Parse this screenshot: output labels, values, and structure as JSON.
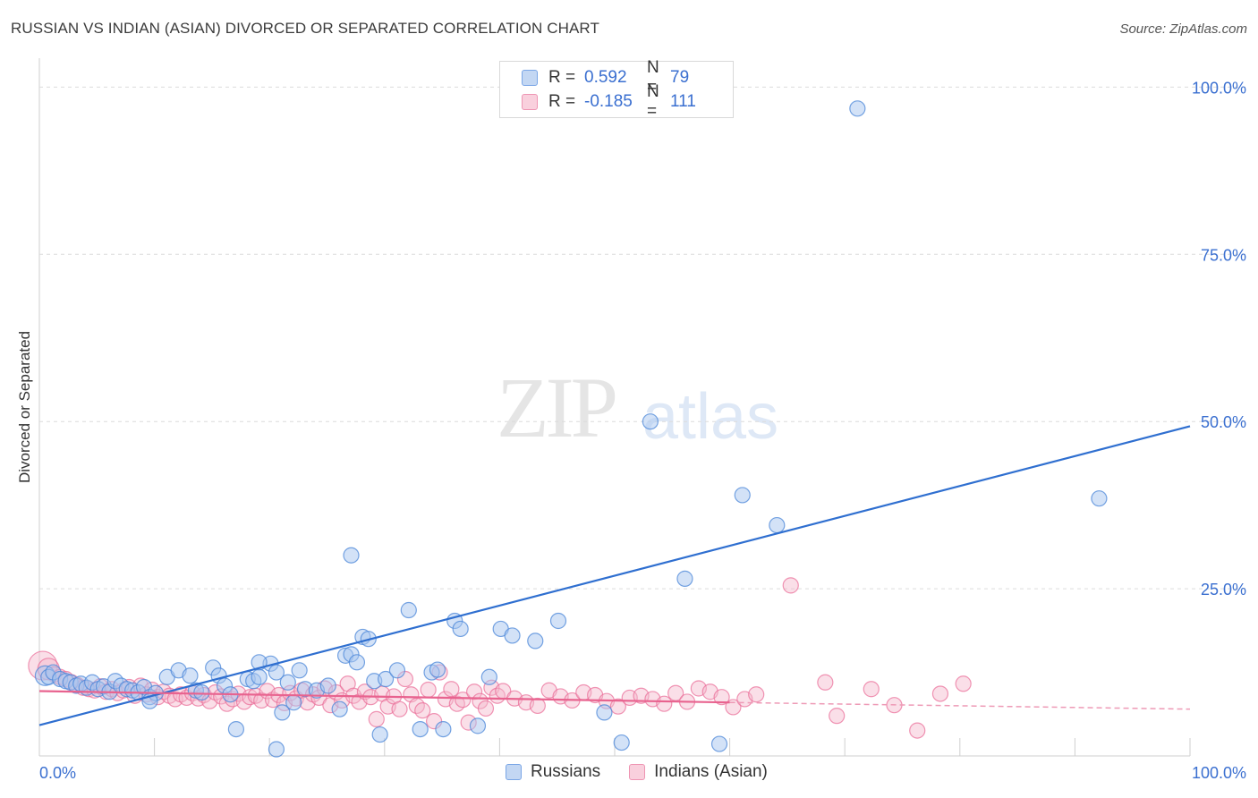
{
  "title": "RUSSIAN VS INDIAN (ASIAN) DIVORCED OR SEPARATED CORRELATION CHART",
  "source": "Source: ZipAtlas.com",
  "watermark": {
    "zip": "ZIP",
    "atlas": "atlas"
  },
  "legend": {
    "r_label": "R =",
    "n_label": "N =",
    "rows": [
      {
        "r": "0.592",
        "n": "79",
        "color": "#a8c6ef"
      },
      {
        "r": "-0.185",
        "n": "111",
        "color": "#f5b8cb"
      }
    ]
  },
  "bottom_legend": {
    "russians": "Russians",
    "indians": "Indians (Asian)"
  },
  "chart_data": {
    "type": "scatter",
    "ylabel": "Divorced or Separated",
    "xlim": [
      0,
      100
    ],
    "ylim": [
      0,
      105
    ],
    "x_tick_labels": [
      "0.0%",
      "100.0%"
    ],
    "y_tick_labels": [
      "25.0%",
      "50.0%",
      "75.0%",
      "100.0%"
    ],
    "y_ticks": [
      25,
      50,
      75,
      100
    ],
    "colors": {
      "russians": "#4a86d8",
      "russians_fill": "#a8c6ef",
      "indians": "#e96a96",
      "indians_fill": "#f5b8cb"
    },
    "series": [
      {
        "name": "Russians",
        "trend": {
          "x": [
            0,
            100
          ],
          "y": [
            4.6,
            49.3
          ]
        },
        "points": [
          [
            0.5,
            12
          ],
          [
            0.8,
            11.8
          ],
          [
            1.2,
            12.5
          ],
          [
            1.8,
            11.5
          ],
          [
            2.3,
            11.2
          ],
          [
            2.7,
            11
          ],
          [
            3.2,
            10.5
          ],
          [
            3.6,
            10.8
          ],
          [
            4.1,
            10.2
          ],
          [
            4.6,
            11
          ],
          [
            5.1,
            10
          ],
          [
            5.6,
            10.4
          ],
          [
            6.1,
            9.6
          ],
          [
            6.6,
            11.2
          ],
          [
            7.1,
            10.5
          ],
          [
            7.6,
            10
          ],
          [
            8.1,
            9.8
          ],
          [
            8.6,
            9.5
          ],
          [
            9.1,
            10.3
          ],
          [
            9.6,
            8.8
          ],
          [
            10.1,
            9.4
          ],
          [
            11.1,
            11.8
          ],
          [
            9.6,
            8.2
          ],
          [
            12.1,
            12.8
          ],
          [
            13.1,
            12
          ],
          [
            13.6,
            9.8
          ],
          [
            14.1,
            9.5
          ],
          [
            15.1,
            13.2
          ],
          [
            15.6,
            12
          ],
          [
            16.1,
            10.5
          ],
          [
            16.6,
            9.2
          ],
          [
            17.1,
            4
          ],
          [
            18.1,
            11.5
          ],
          [
            18.6,
            11.2
          ],
          [
            19.1,
            11.8
          ],
          [
            20.1,
            13.8
          ],
          [
            20.6,
            12.5
          ],
          [
            21.1,
            6.5
          ],
          [
            21.6,
            11
          ],
          [
            22.1,
            8
          ],
          [
            22.6,
            12.8
          ],
          [
            23.1,
            10
          ],
          [
            24.1,
            9.8
          ],
          [
            25.1,
            10.5
          ],
          [
            26.1,
            7
          ],
          [
            26.6,
            15
          ],
          [
            27.1,
            15.2
          ],
          [
            27.6,
            14
          ],
          [
            28.1,
            17.8
          ],
          [
            28.6,
            17.5
          ],
          [
            29.1,
            11.2
          ],
          [
            29.6,
            3.2
          ],
          [
            30.1,
            11.5
          ],
          [
            31.1,
            12.8
          ],
          [
            32.1,
            21.8
          ],
          [
            33.1,
            4
          ],
          [
            34.1,
            12.5
          ],
          [
            34.6,
            12.9
          ],
          [
            35.1,
            4
          ],
          [
            36.1,
            20.2
          ],
          [
            36.6,
            19
          ],
          [
            38.1,
            4.5
          ],
          [
            39.1,
            11.8
          ],
          [
            40.1,
            19
          ],
          [
            41.1,
            18
          ],
          [
            43.1,
            17.2
          ],
          [
            45.1,
            20.2
          ],
          [
            49.1,
            6.5
          ],
          [
            50.6,
            2
          ],
          [
            53.1,
            50
          ],
          [
            56.1,
            26.5
          ],
          [
            59.1,
            1.8
          ],
          [
            61.1,
            39
          ],
          [
            64.1,
            34.5
          ],
          [
            71.1,
            96.8
          ],
          [
            92.1,
            38.5
          ],
          [
            20.6,
            1
          ],
          [
            19.1,
            14
          ],
          [
            27.1,
            30
          ]
        ]
      },
      {
        "name": "Indians (Asian)",
        "trend": {
          "x": [
            0,
            60,
            100
          ],
          "y": [
            9.7,
            8,
            7
          ]
        },
        "points": [
          [
            0.3,
            13.5
          ],
          [
            0.8,
            13
          ],
          [
            1.3,
            12.2
          ],
          [
            1.8,
            11.8
          ],
          [
            2.3,
            11.5
          ],
          [
            2.8,
            11
          ],
          [
            3.3,
            10.6
          ],
          [
            3.8,
            10.2
          ],
          [
            4.3,
            10
          ],
          [
            4.8,
            9.8
          ],
          [
            5.3,
            10.4
          ],
          [
            5.8,
            9.6
          ],
          [
            6.3,
            10
          ],
          [
            6.8,
            9.4
          ],
          [
            7.3,
            9.8
          ],
          [
            7.8,
            10.3
          ],
          [
            8.3,
            9
          ],
          [
            8.8,
            10.5
          ],
          [
            9.3,
            9.2
          ],
          [
            9.8,
            9.9
          ],
          [
            10.3,
            8.8
          ],
          [
            10.8,
            9.6
          ],
          [
            11.3,
            9
          ],
          [
            11.8,
            8.5
          ],
          [
            12.3,
            9.2
          ],
          [
            12.8,
            8.7
          ],
          [
            13.3,
            9.4
          ],
          [
            13.8,
            8.6
          ],
          [
            14.3,
            9.1
          ],
          [
            14.8,
            8.2
          ],
          [
            15.3,
            9.5
          ],
          [
            15.8,
            8.9
          ],
          [
            16.3,
            7.8
          ],
          [
            16.8,
            8.5
          ],
          [
            17.3,
            9.3
          ],
          [
            17.8,
            8.1
          ],
          [
            18.3,
            8.8
          ],
          [
            18.8,
            9
          ],
          [
            19.3,
            8.3
          ],
          [
            19.8,
            9.7
          ],
          [
            20.3,
            8.4
          ],
          [
            20.8,
            9.1
          ],
          [
            21.3,
            7.9
          ],
          [
            21.8,
            9.4
          ],
          [
            22.3,
            8.6
          ],
          [
            22.8,
            9.8
          ],
          [
            23.3,
            8
          ],
          [
            23.8,
            9.2
          ],
          [
            24.3,
            8.7
          ],
          [
            24.8,
            10.1
          ],
          [
            25.3,
            7.6
          ],
          [
            25.8,
            9.5
          ],
          [
            26.3,
            8.3
          ],
          [
            26.8,
            10.8
          ],
          [
            27.3,
            9
          ],
          [
            27.8,
            8.1
          ],
          [
            28.3,
            9.6
          ],
          [
            28.8,
            8.8
          ],
          [
            29.3,
            5.5
          ],
          [
            29.8,
            9.3
          ],
          [
            30.3,
            7.4
          ],
          [
            30.8,
            8.9
          ],
          [
            31.3,
            7
          ],
          [
            31.8,
            11.5
          ],
          [
            32.3,
            9.2
          ],
          [
            32.8,
            7.5
          ],
          [
            33.3,
            6.8
          ],
          [
            33.8,
            9.9
          ],
          [
            34.3,
            5.2
          ],
          [
            34.8,
            12.5
          ],
          [
            35.3,
            8.5
          ],
          [
            35.8,
            10
          ],
          [
            36.3,
            7.8
          ],
          [
            36.8,
            8.4
          ],
          [
            37.3,
            5
          ],
          [
            37.8,
            9.6
          ],
          [
            38.3,
            8.2
          ],
          [
            38.8,
            7.1
          ],
          [
            39.3,
            10.2
          ],
          [
            39.8,
            9
          ],
          [
            40.3,
            9.7
          ],
          [
            41.3,
            8.6
          ],
          [
            42.3,
            8
          ],
          [
            43.3,
            7.5
          ],
          [
            44.3,
            9.8
          ],
          [
            45.3,
            8.9
          ],
          [
            46.3,
            8.3
          ],
          [
            47.3,
            9.5
          ],
          [
            48.3,
            9.1
          ],
          [
            49.3,
            8.2
          ],
          [
            50.3,
            7.4
          ],
          [
            51.3,
            8.7
          ],
          [
            52.3,
            9
          ],
          [
            53.3,
            8.5
          ],
          [
            54.3,
            7.8
          ],
          [
            55.3,
            9.4
          ],
          [
            56.3,
            8.1
          ],
          [
            57.3,
            10.1
          ],
          [
            58.3,
            9.6
          ],
          [
            59.3,
            8.8
          ],
          [
            60.3,
            7.3
          ],
          [
            61.3,
            8.5
          ],
          [
            62.3,
            9.2
          ],
          [
            65.3,
            25.5
          ],
          [
            68.3,
            11
          ],
          [
            69.3,
            6
          ],
          [
            72.3,
            10
          ],
          [
            74.3,
            7.6
          ],
          [
            76.3,
            3.8
          ],
          [
            78.3,
            9.3
          ],
          [
            80.3,
            10.8
          ]
        ]
      }
    ]
  }
}
